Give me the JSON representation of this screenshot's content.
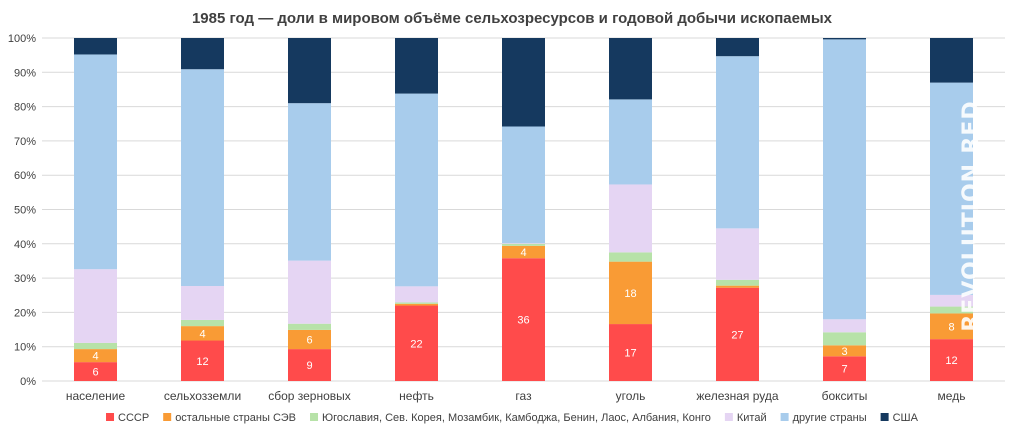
{
  "title": "1985 год — доли в мировом объёме сельхозресурсов и годовой добычи ископаемых",
  "watermark": "REVOLUTION.RED",
  "chart_data": {
    "type": "bar",
    "stacked": true,
    "percent": true,
    "title": "1985 год — доли в мировом объёме сельхозресурсов и годовой добычи ископаемых",
    "xlabel": "",
    "ylabel": "",
    "ylim": [
      0,
      100
    ],
    "yticks": [
      "0%",
      "10%",
      "20%",
      "30%",
      "40%",
      "50%",
      "60%",
      "70%",
      "80%",
      "90%",
      "100%"
    ],
    "grid": true,
    "legend": "bottom",
    "categories": [
      "население",
      "сельхозземли",
      "сбор зерновых",
      "нефть",
      "газ",
      "уголь",
      "железная руда",
      "бокситы",
      "медь"
    ],
    "series": [
      {
        "name": "СССР",
        "color": "#ff4b4b",
        "values": [
          5.5,
          11.8,
          9.3,
          22,
          35.8,
          16.6,
          27.2,
          7.2,
          12.2
        ],
        "labels": [
          "6",
          "12",
          "9",
          "22",
          "36",
          "17",
          "27",
          "7",
          "12"
        ]
      },
      {
        "name": "остальные страны СЭВ",
        "color": "#f99b35",
        "values": [
          3.8,
          4.2,
          5.6,
          0.5,
          3.6,
          18.2,
          0.6,
          3.2,
          7.5
        ],
        "labels": [
          "4",
          "4",
          "6",
          "",
          "4",
          "18",
          "",
          "3",
          "8"
        ]
      },
      {
        "name": "Югославия, Сев. Корея, Мозамбик, Камбоджа, Бенин, Лаос, Албания, Конго",
        "color": "#b7e2a8",
        "values": [
          1.8,
          1.8,
          1.8,
          0.4,
          0.6,
          2.7,
          1.7,
          3.8,
          2.0
        ],
        "labels": [
          "",
          "",
          "",
          "",
          "",
          "",
          "",
          "",
          ""
        ]
      },
      {
        "name": "Китай",
        "color": "#e5d5f3",
        "values": [
          21.5,
          9.9,
          18.4,
          4.7,
          0.2,
          19.8,
          15.0,
          3.8,
          3.4
        ],
        "labels": [
          "",
          "",
          "",
          "",
          "",
          "",
          "",
          "",
          ""
        ]
      },
      {
        "name": "другие страны",
        "color": "#a8ccec",
        "values": [
          62.6,
          63.2,
          45.9,
          56.2,
          34.0,
          24.8,
          50.2,
          81.6,
          61.9
        ],
        "labels": [
          "",
          "",
          "",
          "",
          "",
          "",
          "",
          "",
          ""
        ]
      },
      {
        "name": "США",
        "color": "#15395f",
        "values": [
          4.8,
          9.1,
          19.0,
          16.2,
          25.8,
          17.9,
          5.3,
          0.4,
          13.0
        ],
        "labels": [
          "",
          "",
          "",
          "",
          "",
          "",
          "",
          "",
          ""
        ]
      }
    ]
  }
}
